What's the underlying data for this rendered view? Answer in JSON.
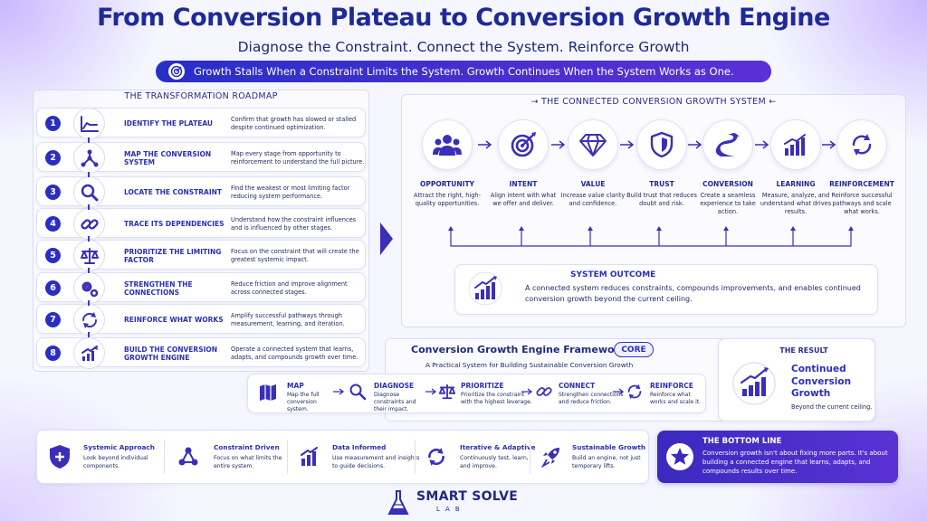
{
  "header": {
    "title": "From Conversion Plateau to Conversion Growth Engine",
    "subtitle": "Diagnose the Constraint. Connect the System. Reinforce Growth",
    "banner": "Growth Stalls When a Constraint Limits the System. Growth Continues When the System Works as One."
  },
  "roadmap": {
    "title": "THE TRANSFORMATION ROADMAP",
    "steps": [
      {
        "num": "1",
        "title": "IDENTIFY THE PLATEAU",
        "desc": "Confirm that growth has slowed or stalled despite continued optimization.",
        "icon": "plateau-line-icon"
      },
      {
        "num": "2",
        "title": "MAP THE CONVERSION SYSTEM",
        "desc": "Map every stage from opportunity to reinforcement to understand the full picture.",
        "icon": "network-icon"
      },
      {
        "num": "3",
        "title": "LOCATE THE CONSTRAINT",
        "desc": "Find the weakest or most limiting factor reducing system performance.",
        "icon": "magnifier-icon"
      },
      {
        "num": "4",
        "title": "TRACE ITS DEPENDENCIES",
        "desc": "Understand how the constraint influences and is influenced by other stages.",
        "icon": "chain-link-icon"
      },
      {
        "num": "5",
        "title": "PRIORITIZE THE LIMITING FACTOR",
        "desc": "Focus on the constraint that will create the greatest systemic impact.",
        "icon": "scales-icon"
      },
      {
        "num": "6",
        "title": "STRENGTHEN THE CONNECTIONS",
        "desc": "Reduce friction and improve alignment across connected stages.",
        "icon": "gears-icon"
      },
      {
        "num": "7",
        "title": "REINFORCE WHAT WORKS",
        "desc": "Amplify successful pathways through measurement, learning, and iteration.",
        "icon": "cycle-arrows-icon"
      },
      {
        "num": "8",
        "title": "BUILD THE CONVERSION GROWTH ENGINE",
        "desc": "Operate a connected system that learns, adapts, and compounds growth over time.",
        "icon": "growth-chart-icon"
      }
    ]
  },
  "system": {
    "title": "THE CONNECTED CONVERSION GROWTH SYSTEM",
    "stages": [
      {
        "title": "OPPORTUNITY",
        "desc": "Attract the right, high-quality opportunities.",
        "icon": "people-group-icon"
      },
      {
        "title": "INTENT",
        "desc": "Align intent with what we offer and deliver.",
        "icon": "target-icon"
      },
      {
        "title": "VALUE",
        "desc": "Increase value clarity and confidence.",
        "icon": "diamond-icon"
      },
      {
        "title": "TRUST",
        "desc": "Build trust that reduces doubt and risk.",
        "icon": "shield-icon"
      },
      {
        "title": "CONVERSION",
        "desc": "Create a seamless experience to take action.",
        "icon": "road-path-icon"
      },
      {
        "title": "LEARNING",
        "desc": "Measure, analyze, and understand what drives results.",
        "icon": "bar-chart-icon"
      },
      {
        "title": "REINFORCEMENT",
        "desc": "Reinforce successful pathways and scale what works.",
        "icon": "refresh-cycle-icon"
      }
    ],
    "outcome": {
      "title": "SYSTEM OUTCOME",
      "text": "A connected system reduces constraints, compounds improvements, and enables continued conversion growth beyond the current ceiling."
    }
  },
  "engine": {
    "title": "Conversion Growth Engine Framework —",
    "badge": "CORE",
    "subtitle": "A Practical System for Building Sustainable Conversion Growth",
    "steps": [
      {
        "title": "MAP",
        "desc": "Map the full conversion system.",
        "icon": "map-icon"
      },
      {
        "title": "DIAGNOSE",
        "desc": "Diagnose constraints and their impact.",
        "icon": "magnifier-icon"
      },
      {
        "title": "PRIORITIZE",
        "desc": "Prioritize the constraint with the highest leverage.",
        "icon": "scales-icon"
      },
      {
        "title": "CONNECT",
        "desc": "Strengthen connections and reduce friction.",
        "icon": "chain-link-icon"
      },
      {
        "title": "REINFORCE",
        "desc": "Reinforce what works and scale it.",
        "icon": "cycle-arrows-icon"
      }
    ]
  },
  "result": {
    "title": "THE RESULT",
    "big": "Continued Conversion Growth",
    "small": "Beyond the current ceiling."
  },
  "pillars": [
    {
      "title": "Systemic Approach",
      "desc": "Look beyond individual components.",
      "icon": "shield-plus-icon"
    },
    {
      "title": "Constraint Driven",
      "desc": "Focus on what limits the entire system.",
      "icon": "nodes-icon"
    },
    {
      "title": "Data Informed",
      "desc": "Use measurement and insights to guide decisions.",
      "icon": "bar-chart-icon"
    },
    {
      "title": "Iterative & Adaptive",
      "desc": "Continuously test, learn, and improve.",
      "icon": "cycle-arrows-icon"
    },
    {
      "title": "Sustainable Growth",
      "desc": "Build an engine, not just temporary lifts.",
      "icon": "rocket-icon"
    }
  ],
  "bottom_line": {
    "title": "THE BOTTOM LINE",
    "text": "Conversion growth isn't about fixing more parts. It's about building a connected engine that learns, adapts, and compounds results over time.",
    "icon": "star-icon"
  },
  "logo": {
    "name": "SMART SOLVE",
    "sub": "LAB",
    "icon": "lab-flask-icon"
  },
  "colors": {
    "primary": "#2a2fb8",
    "accent": "#5a32d4",
    "text": "#1e2a60",
    "background": "#f5f6ff"
  }
}
